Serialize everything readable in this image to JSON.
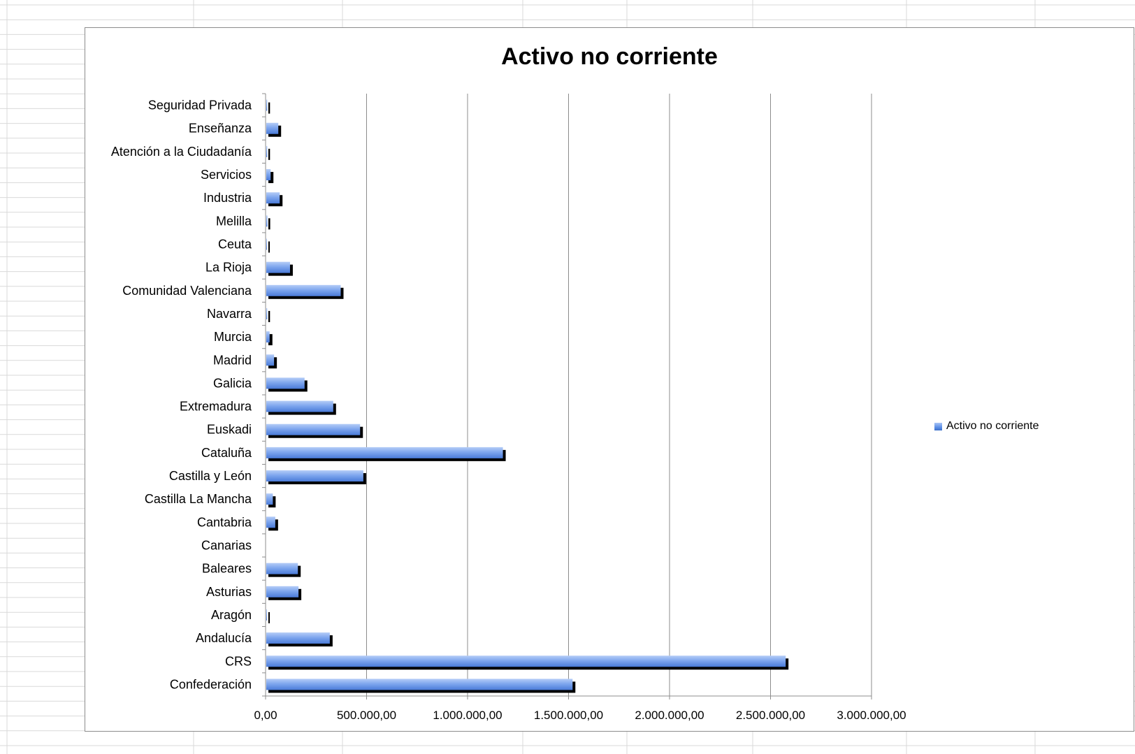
{
  "chart_data": {
    "type": "bar",
    "orientation": "horizontal",
    "title": "Activo no corriente",
    "xlabel": "",
    "ylabel": "",
    "categories": [
      "Seguridad Privada",
      "Enseñanza",
      "Atención a la Ciudadanía",
      "Servicios",
      "Industria",
      "Melilla",
      "Ceuta",
      "La Rioja",
      "Comunidad Valenciana",
      "Navarra",
      "Murcia",
      "Madrid",
      "Galicia",
      "Extremadura",
      "Euskadi",
      "Cataluña",
      "Castilla y León",
      "Castilla La Mancha",
      "Cantabria",
      "Canarias",
      "Baleares",
      "Asturias",
      "Aragón",
      "Andalucía",
      "CRS",
      "Confederación"
    ],
    "series": [
      {
        "name": "Activo no corriente",
        "values": [
          8000,
          63000,
          8000,
          25000,
          70000,
          9000,
          3000,
          121000,
          372000,
          8000,
          20000,
          42000,
          193000,
          335000,
          468000,
          1175000,
          484000,
          36000,
          48000,
          0,
          160000,
          163000,
          6000,
          318000,
          2575000,
          1520000
        ]
      }
    ],
    "xlim": [
      0,
      3000000
    ],
    "x_ticks": [
      0,
      500000,
      1000000,
      1500000,
      2000000,
      2500000,
      3000000
    ],
    "x_tick_labels": [
      "0,00",
      "500.000,00",
      "1.000.000,00",
      "1.500.000,00",
      "2.000.000,00",
      "2.500.000,00",
      "3.000.000,00"
    ],
    "grid": true,
    "legend": "right",
    "bar_color": "#5b8ee6",
    "shadow_color": "#000000"
  }
}
